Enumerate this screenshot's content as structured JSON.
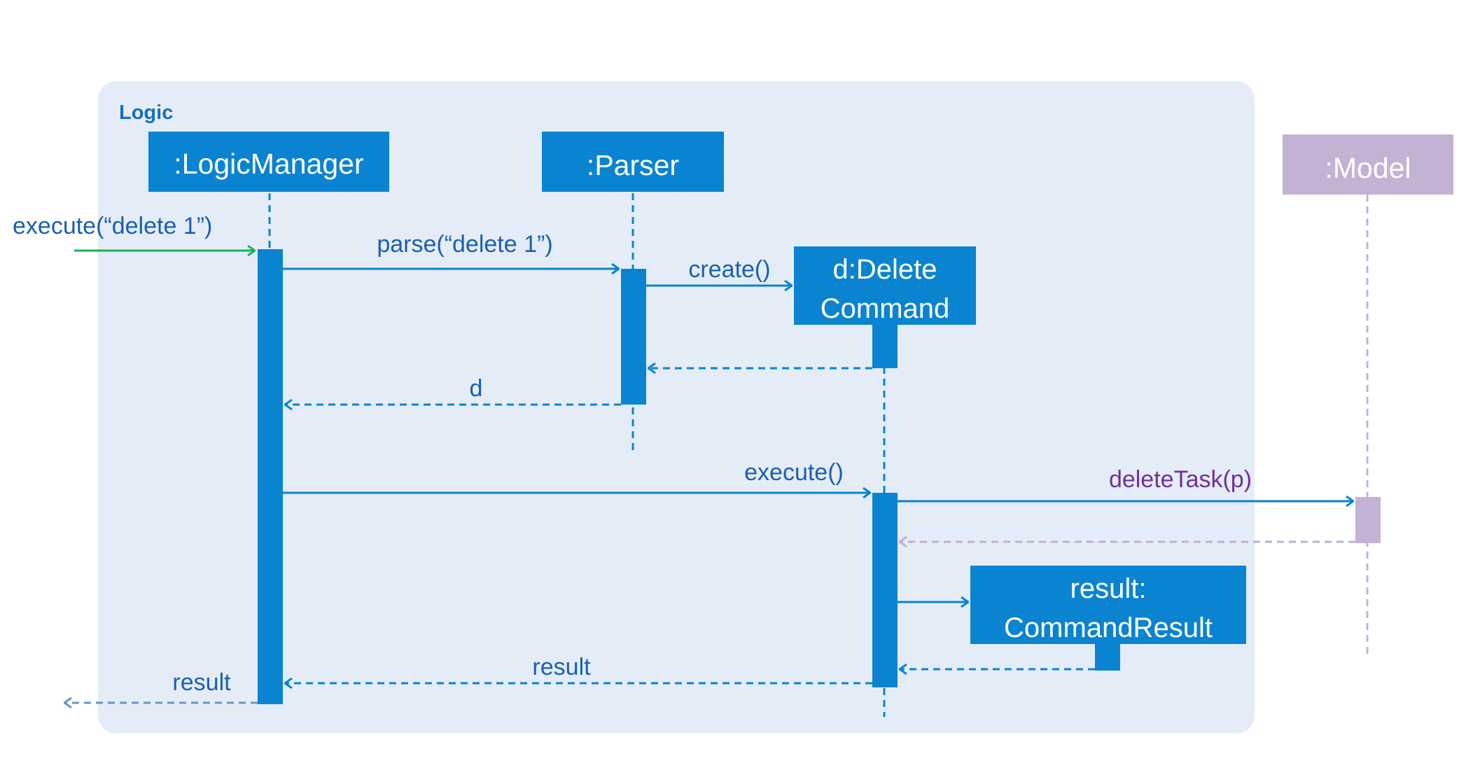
{
  "container": {
    "label": "Logic"
  },
  "participants": {
    "logic_manager": {
      "label": ":LogicManager"
    },
    "parser": {
      "label": ":Parser"
    },
    "delete_command": {
      "line1": "d:Delete",
      "line2": "Command"
    },
    "command_result": {
      "line1": "result:",
      "line2": "CommandResult"
    },
    "model": {
      "label": ":Model"
    }
  },
  "messages": {
    "execute_in": "execute(“delete 1”)",
    "parse": "parse(“delete 1”)",
    "create": "create()",
    "return_d": "d",
    "execute": "execute()",
    "delete_task": "deleteTask(p)",
    "return_result_inner": "result",
    "return_result_outer": "result"
  },
  "colors": {
    "container_fill": "#e4edf7",
    "primary": "#0a84d0",
    "primary_text": "#1b5fb0",
    "model": "#c4b2d4",
    "model_arrow": "#c0aed4",
    "model_text": "#7030a0",
    "found_message": "#1ab05c",
    "outer_return": "#6a94c8"
  }
}
